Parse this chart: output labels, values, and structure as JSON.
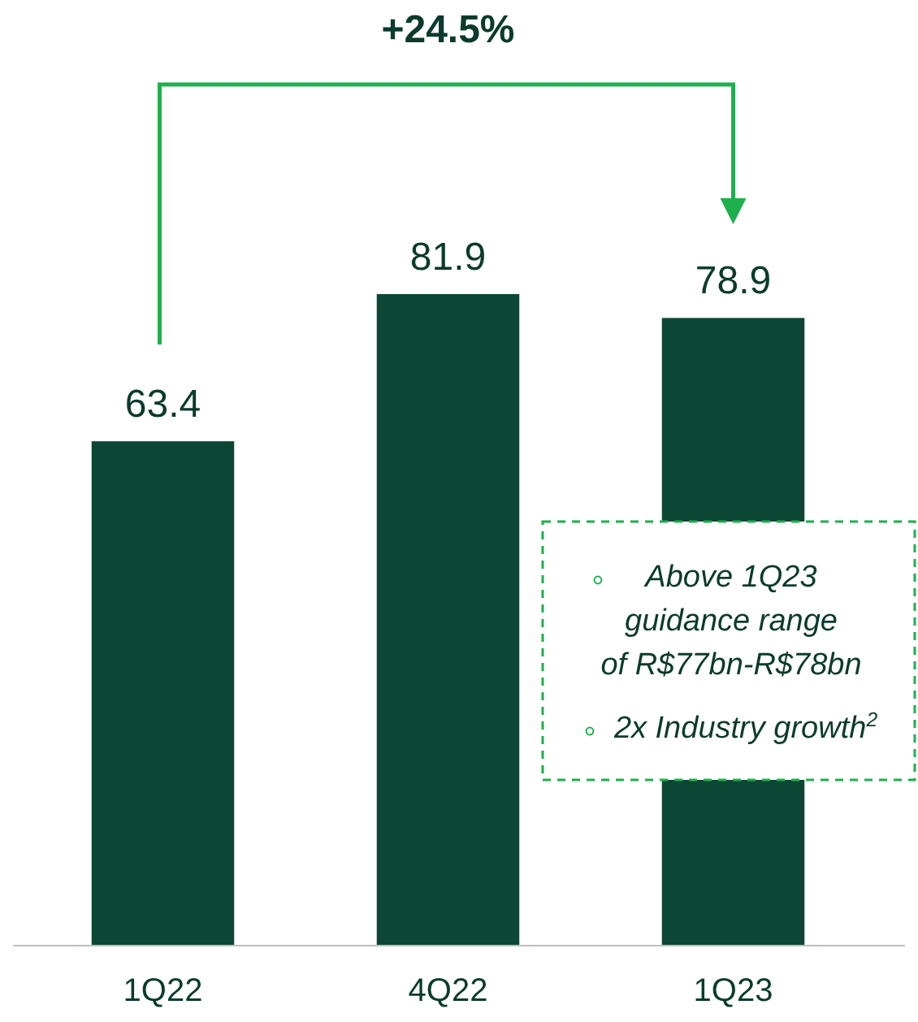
{
  "chart_data": {
    "type": "bar",
    "categories": [
      "1Q22",
      "4Q22",
      "1Q23"
    ],
    "values": [
      63.4,
      81.9,
      78.9
    ],
    "color": "#0b4734",
    "data_labels": true,
    "relative": false,
    "annotations": [
      "+24.5%",
      "Above 1Q23 guidance range of R$77bn-R$78bn",
      "2x Industry growth$^{2}$"
    ]
  }
}
